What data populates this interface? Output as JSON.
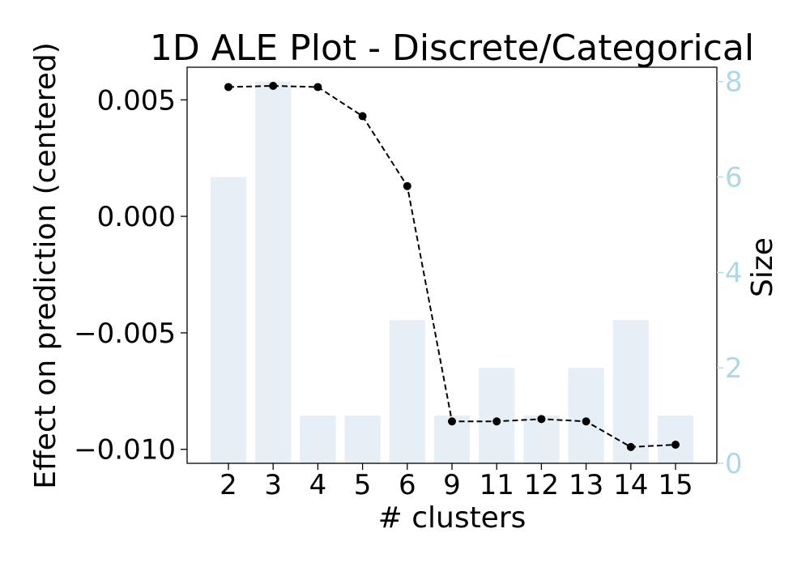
{
  "chart_data": {
    "type": "bar",
    "title": "1D ALE Plot - Discrete/Categorical",
    "xlabel": "# clusters",
    "ylabel": "Effect on prediction (centered)",
    "y2label": "Size",
    "categories": [
      "2",
      "3",
      "4",
      "5",
      "6",
      "9",
      "11",
      "12",
      "13",
      "14",
      "15"
    ],
    "ylim": [
      -0.0106,
      0.0064
    ],
    "y2lim": [
      0,
      8.3
    ],
    "yticks": [
      -0.01,
      -0.005,
      0.0,
      0.005
    ],
    "ytick_labels": [
      "−0.010",
      "−0.005",
      "0.000",
      "0.005"
    ],
    "y2ticks": [
      0,
      2,
      4,
      6,
      8
    ],
    "y2tick_labels": [
      "0",
      "2",
      "4",
      "6",
      "8"
    ],
    "series": [
      {
        "type": "line",
        "axis": "left",
        "values": [
          0.00555,
          0.0056,
          0.00555,
          0.0043,
          0.0013,
          -0.0088,
          -0.0088,
          -0.0087,
          -0.0088,
          -0.0099,
          -0.0098
        ]
      },
      {
        "name": "Size",
        "type": "bar",
        "axis": "right",
        "values": [
          6,
          8,
          1,
          1,
          3,
          1,
          2,
          1,
          2,
          3,
          1
        ]
      }
    ],
    "colors": {
      "bar": "#e6eef6",
      "line": "#000000",
      "right_axis": "#add8e6"
    },
    "grid": false
  }
}
